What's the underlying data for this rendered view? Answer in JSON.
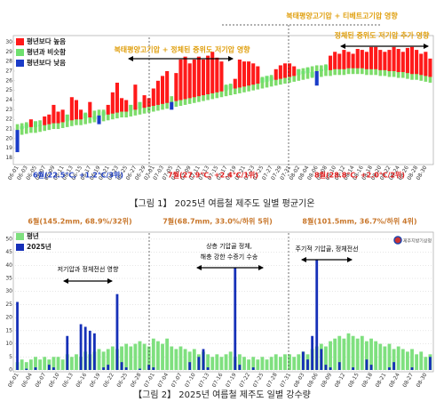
{
  "chart_data": [
    {
      "type": "anomaly_bar",
      "caption": "【그림 1】 2025년 여름철 제주도 일별 평균기온",
      "annotations": [
        "북태평양고기압 + 티베트고기압 영향",
        "정체된 중위도 저기압 추가 영향",
        "북태평양고기압 + 정체된 중위도 저기압 영향",
        "6월(22.5℃, +1.2℃/3위)",
        "7월(27.9℃, +2.4℃/1위)",
        "8월(28.8℃, +2.0℃/2위)"
      ],
      "ylim": [
        17.5,
        30.5
      ],
      "yticks": [
        18,
        19,
        20,
        21,
        22,
        23,
        24,
        25,
        26,
        27,
        28,
        29,
        30
      ],
      "grid": false,
      "legend": "upper-left",
      "baseline_color": "#7ddc6a",
      "categories": [
        "06-01",
        null,
        "06-03",
        null,
        "06-05",
        null,
        "06-07",
        null,
        "06-09",
        null,
        "06-11",
        null,
        "06-13",
        null,
        "06-15",
        null,
        "06-17",
        null,
        "06-19",
        null,
        "06-21",
        null,
        "06-23",
        null,
        "06-25",
        null,
        "06-27",
        null,
        "06-29",
        null,
        "07-01",
        null,
        "07-03",
        null,
        "07-05",
        null,
        "07-07",
        null,
        "07-09",
        null,
        "07-11",
        null,
        "07-13",
        null,
        "07-15",
        null,
        "07-17",
        null,
        "07-19",
        null,
        "07-21",
        null,
        "07-23",
        null,
        "07-25",
        null,
        "07-27",
        null,
        "07-29",
        null,
        "07-31",
        null,
        "08-02",
        null,
        "08-04",
        null,
        "08-06",
        null,
        "08-08",
        null,
        "08-10",
        null,
        "08-12",
        null,
        "08-14",
        null,
        "08-16",
        null,
        "08-18",
        null,
        "08-20",
        null,
        "08-22",
        null,
        "08-24",
        null,
        "08-26",
        null,
        "08-28",
        null,
        "08-30",
        null
      ],
      "baseline": [
        20.9,
        21.0,
        21.1,
        21.2,
        21.2,
        21.3,
        21.4,
        21.5,
        21.6,
        21.6,
        21.7,
        21.8,
        21.9,
        22.0,
        22.0,
        22.1,
        22.2,
        22.3,
        22.4,
        22.4,
        22.5,
        22.6,
        22.7,
        22.8,
        22.8,
        22.9,
        23.0,
        23.1,
        23.2,
        23.3,
        23.4,
        23.5,
        23.6,
        23.7,
        23.8,
        23.9,
        24.0,
        24.1,
        24.2,
        24.3,
        24.4,
        24.5,
        24.6,
        24.7,
        24.8,
        24.9,
        25.0,
        25.1,
        25.2,
        25.3,
        25.4,
        25.5,
        25.6,
        25.7,
        25.8,
        25.9,
        26.0,
        26.1,
        26.2,
        26.3,
        26.4,
        26.5,
        26.6,
        26.7,
        26.8,
        26.9,
        27.0,
        27.0,
        27.1,
        27.1,
        27.2,
        27.2,
        27.2,
        27.3,
        27.3,
        27.3,
        27.3,
        27.2,
        27.2,
        27.2,
        27.1,
        27.1,
        27.0,
        27.0,
        26.9,
        26.9,
        26.8,
        26.7,
        26.7,
        26.6,
        26.5,
        26.4
      ],
      "series": [
        {
          "name": "평년보다 높음",
          "color": "#ff1a1a",
          "values": [
            null,
            null,
            null,
            22.0,
            null,
            null,
            22.3,
            22.5,
            23.5,
            22.8,
            23.0,
            null,
            24.3,
            24.0,
            23.0,
            null,
            23.8,
            null,
            null,
            null,
            23.5,
            24.8,
            25.8,
            24.2,
            24.0,
            null,
            25.6,
            null,
            24.5,
            24.2,
            25.2,
            26.0,
            26.5,
            27.0,
            null,
            26.8,
            28.2,
            28.5,
            27.8,
            28.2,
            28.5,
            28.2,
            28.6,
            29.0,
            28.4,
            28.0,
            null,
            null,
            26.2,
            28.2,
            28.0,
            28.0,
            27.8,
            27.5,
            null,
            null,
            null,
            27.2,
            27.6,
            27.8,
            27.8,
            27.5,
            null,
            null,
            null,
            null,
            null,
            null,
            null,
            28.6,
            29.0,
            28.8,
            29.2,
            29.0,
            28.8,
            29.3,
            29.2,
            29.0,
            29.5,
            29.5,
            29.2,
            29.0,
            29.2,
            29.5,
            29.3,
            29.0,
            29.4,
            29.5,
            29.2,
            28.8,
            29.0,
            28.3
          ]
        },
        {
          "name": "평년과 비슷함",
          "color": "#6ee06e",
          "values": [
            null,
            21.3,
            21.5,
            null,
            21.8,
            21.4,
            null,
            null,
            null,
            null,
            null,
            22.5,
            null,
            null,
            null,
            22.6,
            null,
            22.0,
            null,
            22.8,
            null,
            null,
            null,
            null,
            null,
            23.5,
            null,
            23.8,
            null,
            null,
            null,
            null,
            null,
            null,
            null,
            null,
            null,
            null,
            null,
            null,
            null,
            null,
            null,
            null,
            null,
            null,
            25.5,
            25.6,
            null,
            null,
            null,
            null,
            null,
            null,
            26.3,
            26.5,
            26.4,
            null,
            null,
            null,
            null,
            null,
            27.2,
            27.0,
            27.3,
            26.4,
            null,
            27.2,
            27.6,
            null,
            null,
            null,
            null,
            null,
            null,
            null,
            null,
            null,
            null,
            null,
            null,
            null,
            null,
            null,
            null,
            null,
            null,
            null,
            null,
            null,
            null,
            null
          ]
        },
        {
          "name": "평년보다 낮음",
          "color": "#1a3cc8",
          "values": [
            18.6,
            null,
            null,
            null,
            null,
            null,
            null,
            null,
            null,
            null,
            null,
            null,
            null,
            null,
            null,
            null,
            null,
            null,
            21.5,
            null,
            null,
            null,
            null,
            null,
            null,
            null,
            null,
            null,
            null,
            null,
            null,
            null,
            null,
            null,
            23.0,
            null,
            null,
            null,
            null,
            null,
            null,
            null,
            null,
            null,
            null,
            null,
            null,
            null,
            null,
            null,
            null,
            null,
            null,
            null,
            null,
            null,
            null,
            null,
            null,
            null,
            null,
            null,
            null,
            null,
            null,
            null,
            25.5,
            null,
            null,
            null,
            null,
            null,
            null,
            null,
            null,
            null,
            null,
            null,
            null,
            null,
            null,
            null,
            null,
            null,
            null,
            null,
            null,
            null,
            null,
            null,
            null,
            null
          ]
        }
      ]
    },
    {
      "type": "bar",
      "caption": "【그림 2】 2025년 여름철 제주도 일별 강수량",
      "annotations": [
        "6월(145.2mm, 68.9%/32위)",
        "7월(68.7mm, 33.0%/하위 5위)",
        "8월(101.5mm, 36.7%/하위 4위)",
        "저기압과 정체전선 영향",
        "상층 기압골 정체,",
        "해충 강한 수증기 수송",
        "주기적 기압골, 정체전선",
        "제주지방기상청"
      ],
      "ylim": [
        0,
        52
      ],
      "yticks": [
        0,
        5,
        10,
        15,
        20,
        25,
        30,
        35,
        40,
        45,
        50
      ],
      "grid": true,
      "legend": "upper-left",
      "categories": [
        "06-01",
        null,
        null,
        "06-04",
        null,
        null,
        "06-07",
        null,
        null,
        "06-10",
        null,
        null,
        "06-13",
        null,
        null,
        "06-16",
        null,
        null,
        "06-19",
        null,
        null,
        "06-22",
        null,
        null,
        "06-25",
        null,
        null,
        "06-28",
        null,
        null,
        "07-01",
        null,
        null,
        "07-04",
        null,
        null,
        "07-07",
        null,
        null,
        "07-10",
        null,
        null,
        "07-13",
        null,
        null,
        "07-16",
        null,
        null,
        "07-19",
        null,
        null,
        "07-22",
        null,
        null,
        "07-25",
        null,
        null,
        "07-28",
        null,
        null,
        "07-31",
        null,
        null,
        "08-03",
        null,
        null,
        "08-06",
        null,
        null,
        "08-09",
        null,
        null,
        "08-12",
        null,
        null,
        "08-15",
        null,
        null,
        "08-18",
        null,
        null,
        "08-21",
        null,
        null,
        "08-24",
        null,
        null,
        "08-27",
        null,
        null,
        "08-30",
        null
      ],
      "series": [
        {
          "name": "평년",
          "color": "#7fe07f",
          "values": [
            3,
            4,
            3,
            4,
            5,
            4,
            5,
            4,
            5,
            5,
            4,
            6,
            5,
            6,
            5,
            7,
            6,
            7,
            8,
            7,
            8,
            9,
            8,
            9,
            10,
            9,
            10,
            11,
            10,
            9,
            12,
            11,
            10,
            12,
            9,
            8,
            9,
            8,
            7,
            8,
            6,
            7,
            6,
            5,
            6,
            5,
            6,
            7,
            5,
            6,
            5,
            4,
            5,
            4,
            5,
            4,
            5,
            6,
            5,
            6,
            6,
            5,
            6,
            7,
            6,
            8,
            9,
            10,
            9,
            11,
            12,
            13,
            12,
            14,
            13,
            12,
            13,
            11,
            12,
            11,
            10,
            9,
            10,
            8,
            9,
            8,
            7,
            8,
            6,
            7,
            5,
            6
          ]
        },
        {
          "name": "2025년",
          "color": "#1630b8",
          "values": [
            26,
            0,
            0.5,
            0,
            1,
            0,
            0,
            2,
            1,
            0,
            0,
            13,
            0,
            0,
            17.5,
            16.5,
            15,
            14,
            0,
            1,
            2,
            0,
            29,
            3,
            1,
            0,
            0,
            0.5,
            0,
            2,
            1,
            0,
            0,
            0,
            0,
            0,
            0,
            0,
            3,
            0,
            5,
            8,
            1,
            0,
            0,
            0,
            0,
            0,
            39,
            2,
            0,
            0,
            1,
            0,
            0,
            0,
            0,
            0,
            0,
            0,
            0,
            0,
            0,
            7,
            4,
            13,
            42,
            8,
            2,
            1,
            0,
            3,
            0,
            0,
            1,
            0,
            0,
            4,
            2,
            0,
            0,
            0,
            1,
            3,
            0,
            0,
            0,
            1,
            0,
            0,
            0,
            5
          ]
        }
      ]
    }
  ]
}
